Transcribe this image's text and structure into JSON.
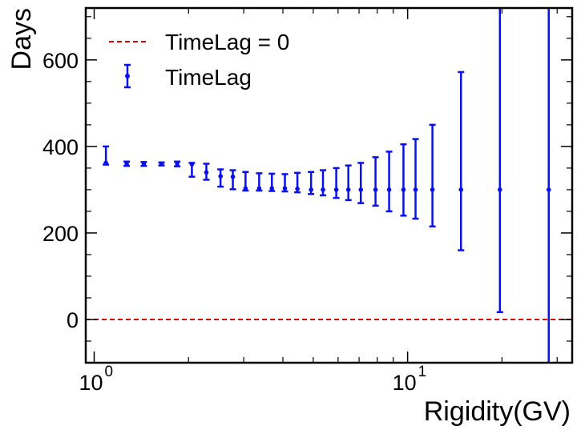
{
  "chart_data": {
    "type": "scatter",
    "xscale": "log",
    "xlim": [
      0.94,
      33.5
    ],
    "ylim": [
      -100,
      720
    ],
    "xlabel": "Rigidity(GV)",
    "ylabel": "Days",
    "x_ticks": [
      {
        "value": 1,
        "base": "10",
        "exp": "0"
      },
      {
        "value": 10,
        "base": "10",
        "exp": "1"
      }
    ],
    "y_ticks": [
      {
        "value": 0,
        "label": "0"
      },
      {
        "value": 200,
        "label": "200"
      },
      {
        "value": 400,
        "label": "400"
      },
      {
        "value": 600,
        "label": "600"
      }
    ],
    "y_minor_step": 50,
    "legend": {
      "position": "top-left",
      "entries": [
        {
          "label": "TimeLag = 0",
          "kind": "line"
        },
        {
          "label": "TimeLag",
          "kind": "errorbar"
        }
      ]
    },
    "reference_line": {
      "name": "TimeLag = 0",
      "y": 0,
      "color": "#e00000",
      "style": "dashed"
    },
    "series": [
      {
        "name": "TimeLag",
        "color": "#0a10e8",
        "points": [
          {
            "x": 1.09,
            "y": 362,
            "lo": 358,
            "hi": 400
          },
          {
            "x": 1.27,
            "y": 360,
            "lo": 355,
            "hi": 365
          },
          {
            "x": 1.44,
            "y": 360,
            "lo": 355,
            "hi": 364
          },
          {
            "x": 1.64,
            "y": 360,
            "lo": 356,
            "hi": 363
          },
          {
            "x": 1.84,
            "y": 360,
            "lo": 354,
            "hi": 365
          },
          {
            "x": 2.05,
            "y": 359,
            "lo": 330,
            "hi": 362
          },
          {
            "x": 2.28,
            "y": 340,
            "lo": 323,
            "hi": 360
          },
          {
            "x": 2.53,
            "y": 331,
            "lo": 307,
            "hi": 347
          },
          {
            "x": 2.77,
            "y": 330,
            "lo": 301,
            "hi": 345
          },
          {
            "x": 3.04,
            "y": 303,
            "lo": 298,
            "hi": 341
          },
          {
            "x": 3.36,
            "y": 303,
            "lo": 298,
            "hi": 338
          },
          {
            "x": 3.69,
            "y": 303,
            "lo": 297,
            "hi": 337
          },
          {
            "x": 4.06,
            "y": 303,
            "lo": 296,
            "hi": 336
          },
          {
            "x": 4.45,
            "y": 302,
            "lo": 294,
            "hi": 339
          },
          {
            "x": 4.92,
            "y": 300,
            "lo": 290,
            "hi": 341
          },
          {
            "x": 5.37,
            "y": 300,
            "lo": 287,
            "hi": 345
          },
          {
            "x": 5.92,
            "y": 300,
            "lo": 281,
            "hi": 350
          },
          {
            "x": 6.47,
            "y": 300,
            "lo": 276,
            "hi": 356
          },
          {
            "x": 7.09,
            "y": 300,
            "lo": 269,
            "hi": 362
          },
          {
            "x": 7.9,
            "y": 300,
            "lo": 263,
            "hi": 375
          },
          {
            "x": 8.73,
            "y": 300,
            "lo": 250,
            "hi": 388
          },
          {
            "x": 9.7,
            "y": 300,
            "lo": 240,
            "hi": 405
          },
          {
            "x": 10.6,
            "y": 300,
            "lo": 233,
            "hi": 417
          },
          {
            "x": 12.0,
            "y": 300,
            "lo": 215,
            "hi": 450
          },
          {
            "x": 14.8,
            "y": 300,
            "lo": 160,
            "hi": 572
          },
          {
            "x": 19.7,
            "y": 300,
            "lo": 17,
            "hi": 730
          },
          {
            "x": 28.2,
            "y": 300,
            "lo": -130,
            "hi": 730
          }
        ]
      }
    ]
  }
}
